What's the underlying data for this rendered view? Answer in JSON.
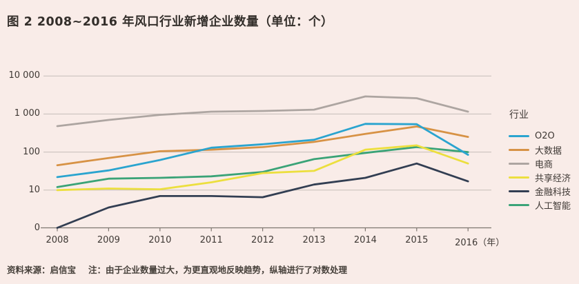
{
  "title": "图 2  2008~2016 年风口行业新增企业数量（单位：个）",
  "legend": {
    "title": "行业"
  },
  "footer": {
    "source": "资料来源：启信宝",
    "note": "注：由于企业数量过大，为更直观地反映趋势，纵轴进行了对数处理"
  },
  "colors": {
    "background": "#f9ece8",
    "grid": "#c6bdb8",
    "axis": "#7e766f",
    "text": "#3e3834",
    "title_text": "#332e2a"
  },
  "chart_data": {
    "type": "line",
    "title": "图 2 2008~2016 年风口行业新增企业数量（单位：个）",
    "xlabel": "年",
    "ylabel": "",
    "y_scale": "log",
    "x": [
      2008,
      2009,
      2010,
      2011,
      2012,
      2013,
      2014,
      2015,
      2016
    ],
    "x_tick_labels": [
      "2008",
      "2009",
      "2010",
      "2011",
      "2012",
      "2013",
      "2014",
      "2015",
      "2016（年）"
    ],
    "y_ticks": [
      {
        "label": "10 000",
        "value": 10000
      },
      {
        "label": "1 000",
        "value": 1000
      },
      {
        "label": "100",
        "value": 100
      },
      {
        "label": "10",
        "value": 10
      },
      {
        "label": "0",
        "value": 0
      }
    ],
    "legend_position": "right",
    "series": [
      {
        "name": "O2O",
        "color": "#2aa4cf",
        "values": [
          22,
          33,
          62,
          130,
          160,
          210,
          550,
          540,
          85
        ]
      },
      {
        "name": "大数据",
        "color": "#d79245",
        "values": [
          45,
          70,
          105,
          115,
          135,
          185,
          300,
          470,
          250
        ]
      },
      {
        "name": "电商",
        "color": "#ada5a1",
        "values": [
          480,
          700,
          950,
          1150,
          1200,
          1300,
          2900,
          2600,
          1150
        ]
      },
      {
        "name": "共享经济",
        "color": "#ecdf3e",
        "values": [
          10,
          11,
          10.5,
          16,
          28,
          32,
          115,
          150,
          50
        ]
      },
      {
        "name": "金融科技",
        "color": "#323e52",
        "values": [
          0,
          3.5,
          7,
          7,
          6.5,
          14,
          21,
          50,
          17
        ]
      },
      {
        "name": "人工智能",
        "color": "#3aa377",
        "values": [
          12,
          20,
          21,
          23,
          30,
          65,
          95,
          135,
          100
        ]
      }
    ]
  }
}
